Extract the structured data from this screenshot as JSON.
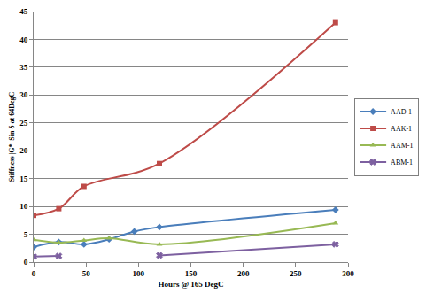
{
  "chart_data": {
    "type": "line",
    "x_label": "Hours @ 165 DegC",
    "y_label": "Stiffness |G*| Sin δ at 64DegC",
    "xlim": [
      0,
      300
    ],
    "xticks": [
      0,
      50,
      100,
      150,
      200,
      250,
      300
    ],
    "ylim": [
      0,
      45
    ],
    "yticks": [
      0,
      5,
      10,
      15,
      20,
      25,
      30,
      35,
      40,
      45
    ],
    "grid": true,
    "legend": "right",
    "line_style": "smooth",
    "series": [
      {
        "name": "AAD-1",
        "color": "#4a7ebb",
        "marker": "diamond",
        "x": [
          0,
          24,
          48,
          72,
          96,
          120,
          288
        ],
        "values": [
          2.7,
          3.6,
          3.2,
          4.1,
          5.5,
          6.3,
          9.4
        ]
      },
      {
        "name": "AAK-1",
        "color": "#be4b48",
        "marker": "square",
        "x": [
          0,
          24,
          48,
          120,
          288
        ],
        "values": [
          8.4,
          9.6,
          13.6,
          17.7,
          43.0
        ]
      },
      {
        "name": "AAM-1",
        "color": "#98b954",
        "marker": "triangle-up",
        "x": [
          0,
          24,
          48,
          72,
          120,
          288
        ],
        "values": [
          4.0,
          3.5,
          3.9,
          4.3,
          3.2,
          7.0
        ]
      },
      {
        "name": "ABM-1",
        "color": "#7d60a0",
        "marker": "x",
        "x": [
          0,
          24,
          72,
          120,
          288
        ],
        "values": [
          1.0,
          1.1,
          null,
          1.2,
          3.2
        ]
      }
    ]
  }
}
